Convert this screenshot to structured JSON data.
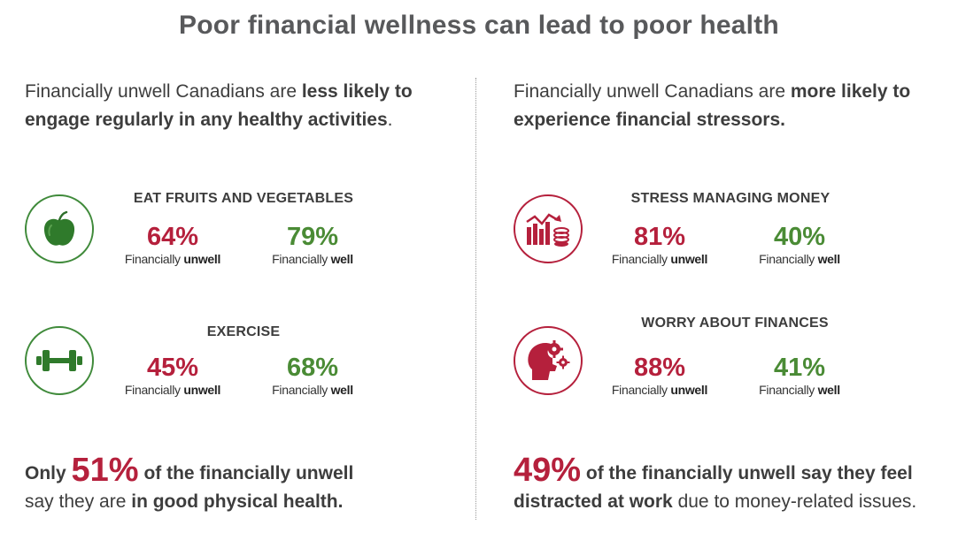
{
  "title": "Poor financial wellness can lead to poor health",
  "colors": {
    "unwell_red": "#b5203c",
    "well_green": "#4a8b35",
    "text_gray": "#3d3d3d"
  },
  "left": {
    "intro": {
      "part1": "Financially unwell Canadians are ",
      "bold1": "less likely to engage regularly in any healthy activities",
      "part2": "."
    },
    "stats": [
      {
        "icon": "apple-icon",
        "title": "EAT FRUITS AND VEGETABLES",
        "unwell": {
          "pct": "64%",
          "label_prefix": "Financially ",
          "label_bold": "unwell"
        },
        "well": {
          "pct": "79%",
          "label_prefix": "Financially ",
          "label_bold": "well"
        }
      },
      {
        "icon": "dumbbell-icon",
        "title": "EXERCISE",
        "unwell": {
          "pct": "45%",
          "label_prefix": "Financially ",
          "label_bold": "unwell"
        },
        "well": {
          "pct": "68%",
          "label_prefix": "Financially ",
          "label_bold": "well"
        }
      }
    ],
    "bottom": {
      "lead": "Only",
      "pct": "51%",
      "rest1": "of the financially unwell",
      "rest2": "say they are ",
      "bold2": "in good physical health."
    }
  },
  "right": {
    "intro": {
      "part1": "Financially unwell Canadians are ",
      "bold1": "more likely to experience financial stressors."
    },
    "stats": [
      {
        "icon": "money-chart-icon",
        "title": "STRESS MANAGING MONEY",
        "unwell": {
          "pct": "81%",
          "label_prefix": "Financially ",
          "label_bold": "unwell"
        },
        "well": {
          "pct": "40%",
          "label_prefix": "Financially ",
          "label_bold": "well"
        }
      },
      {
        "icon": "head-gears-icon",
        "title": "WORRY ABOUT FINANCES",
        "unwell": {
          "pct": "88%",
          "label_prefix": "Financially ",
          "label_bold": "unwell"
        },
        "well": {
          "pct": "41%",
          "label_prefix": "Financially ",
          "label_bold": "well"
        }
      }
    ],
    "bottom": {
      "pct": "49%",
      "rest1": "of the financially unwell say they feel",
      "bold2": "distracted at work",
      "rest2": " due to money-related issues."
    }
  }
}
